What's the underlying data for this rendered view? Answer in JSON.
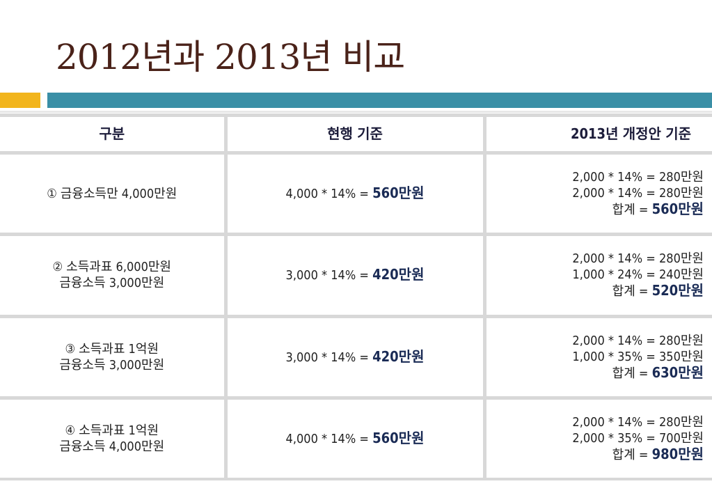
{
  "title": "2012년과 2013년 비교",
  "colors": {
    "title": "#4a2219",
    "accent_orange": "#f2b51d",
    "accent_teal": "#3a8fa6",
    "emphasis": "#1a2b55"
  },
  "table": {
    "headers": [
      "구분",
      "현행 기준",
      "2013년 개정안 기준"
    ],
    "rows": [
      {
        "category": [
          "① 금융소득만 4,000만원"
        ],
        "current": {
          "formula": "4,000 * 14% = ",
          "result": "560만원"
        },
        "revised": {
          "lines": [
            "2,000 * 14% = 280만원",
            "2,000 * 14% = 280만원"
          ],
          "total_label": "합계 = ",
          "total": "560만원"
        }
      },
      {
        "category": [
          "② 소득과표 6,000만원",
          "금융소득 3,000만원"
        ],
        "current": {
          "formula": "3,000 * 14% = ",
          "result": "420만원"
        },
        "revised": {
          "lines": [
            "2,000 * 14% = 280만원",
            "1,000 * 24% = 240만원"
          ],
          "total_label": "합계 = ",
          "total": "520만원"
        }
      },
      {
        "category": [
          "③ 소득과표 1억원",
          "금융소득 3,000만원"
        ],
        "current": {
          "formula": "3,000 * 14% = ",
          "result": "420만원"
        },
        "revised": {
          "lines": [
            "2,000 * 14% = 280만원",
            "1,000 * 35% = 350만원"
          ],
          "total_label": "합계 = ",
          "total": "630만원"
        }
      },
      {
        "category": [
          "④ 소득과표 1억원",
          "금융소득 4,000만원"
        ],
        "current": {
          "formula": "4,000 * 14% = ",
          "result": "560만원"
        },
        "revised": {
          "lines": [
            "2,000 * 14% = 280만원",
            "2,000 * 35% = 700만원"
          ],
          "total_label": "합계 = ",
          "total": "980만원"
        }
      }
    ]
  }
}
